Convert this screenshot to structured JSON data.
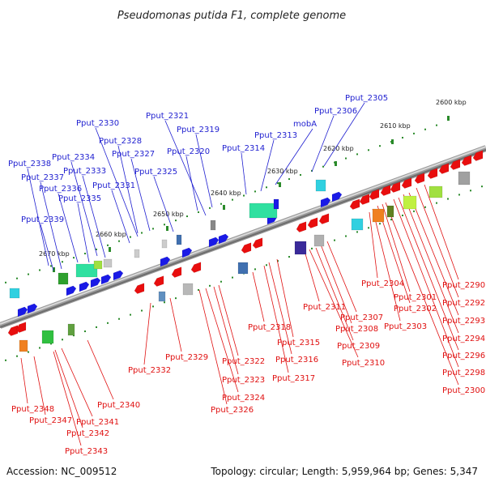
{
  "title": "Pseudomonas putida F1, complete genome",
  "footer": {
    "accession": "Accession: NC_009512",
    "summary": "Topology: circular; Length: 5,959,964 bp; Genes: 5,347"
  },
  "colors": {
    "forward_label": "#1f1fd0",
    "reverse_label": "#e01010",
    "backbone": "#8a8a8a",
    "tick": "#2a8a2a"
  },
  "scale_labels": [
    "2600 kbp",
    "2610 kbp",
    "2620 kbp",
    "2630 kbp",
    "2640 kbp",
    "2650 kbp",
    "2660 kbp",
    "2670 kbp"
  ],
  "top_labels": [
    "Pput_2305",
    "Pput_2306",
    "mobA",
    "Pput_2313",
    "Pput_2314",
    "Pput_2319",
    "Pput_2321",
    "Pput_2320",
    "Pput_2325",
    "Pput_2327",
    "Pput_2328",
    "Pput_2330",
    "Pput_2331",
    "Pput_2333",
    "Pput_2334",
    "Pput_2335",
    "Pput_2336",
    "Pput_2337",
    "Pput_2338",
    "Pput_2339"
  ],
  "bottom_labels": [
    "Pput_2290",
    "Pput_2292",
    "Pput_2293",
    "Pput_2294",
    "Pput_2296",
    "Pput_2298",
    "Pput_2300",
    "Pput_2301",
    "Pput_2302",
    "Pput_2303",
    "Pput_2304",
    "Pput_2307",
    "Pput_2308",
    "Pput_2309",
    "Pput_2310",
    "Pput_2311",
    "Pput_2315",
    "Pput_2316",
    "Pput_2317",
    "Pput_2318",
    "Pput_2322",
    "Pput_2323",
    "Pput_2324",
    "Pput_2326",
    "Pput_2329",
    "Pput_2332",
    "Pput_2340",
    "Pput_2341",
    "Pput_2342",
    "Pput_2343",
    "Pput_2347",
    "Pput_2348"
  ]
}
